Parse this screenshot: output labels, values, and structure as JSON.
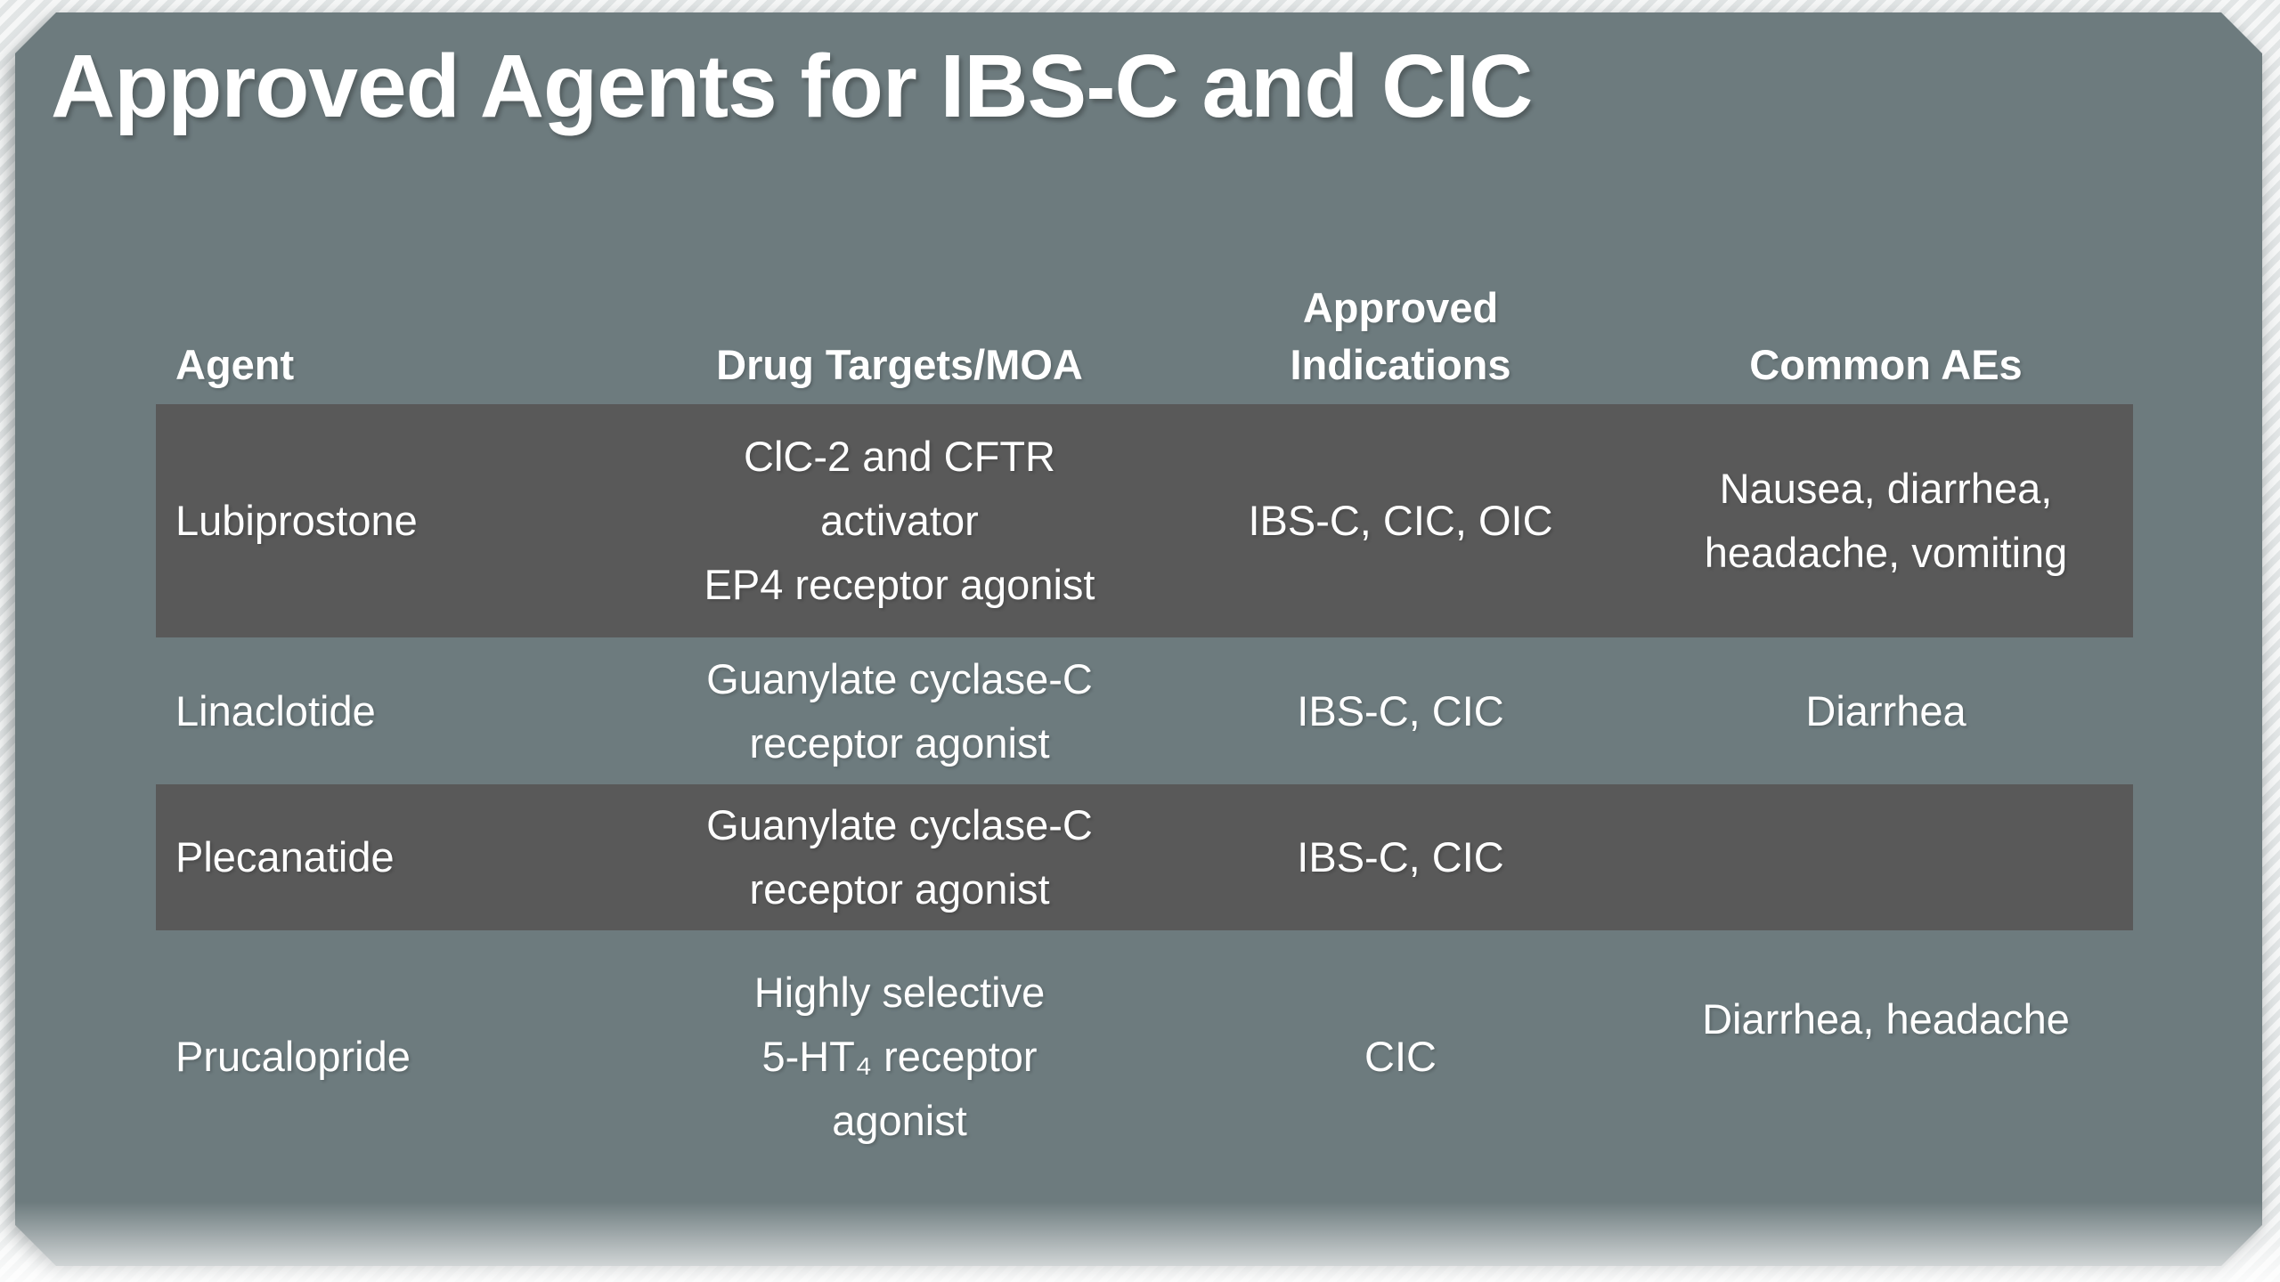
{
  "slide": {
    "title": "Approved Agents for IBS-C and CIC",
    "colors": {
      "slide_background": "#6d7b7e",
      "shaded_row": "#595959",
      "text": "#ffffff",
      "canvas_background": "#eceeee"
    },
    "table": {
      "columns": [
        "Agent",
        "Drug Targets/MOA",
        "Approved\nIndications",
        "Common AEs"
      ],
      "rows": [
        {
          "agent": "Lubiprostone",
          "moa": "ClC-2 and CFTR\nactivator\nEP4 receptor agonist",
          "indications": "IBS-C, CIC, OIC",
          "aes": "Nausea, diarrhea,\nheadache, vomiting",
          "shaded": true
        },
        {
          "agent": "Linaclotide",
          "moa": "Guanylate cyclase-C\nreceptor agonist",
          "indications": "IBS-C, CIC",
          "aes": "Diarrhea",
          "shaded": false
        },
        {
          "agent": "Plecanatide",
          "moa": "Guanylate cyclase-C\nreceptor agonist",
          "indications": "IBS-C, CIC",
          "aes": "",
          "shaded": true
        },
        {
          "agent": "Prucalopride",
          "moa": "Highly selective\n5-HT₄ receptor\nagonist",
          "indications": "CIC",
          "aes": "Diarrhea, headache",
          "shaded": false
        }
      ]
    }
  }
}
